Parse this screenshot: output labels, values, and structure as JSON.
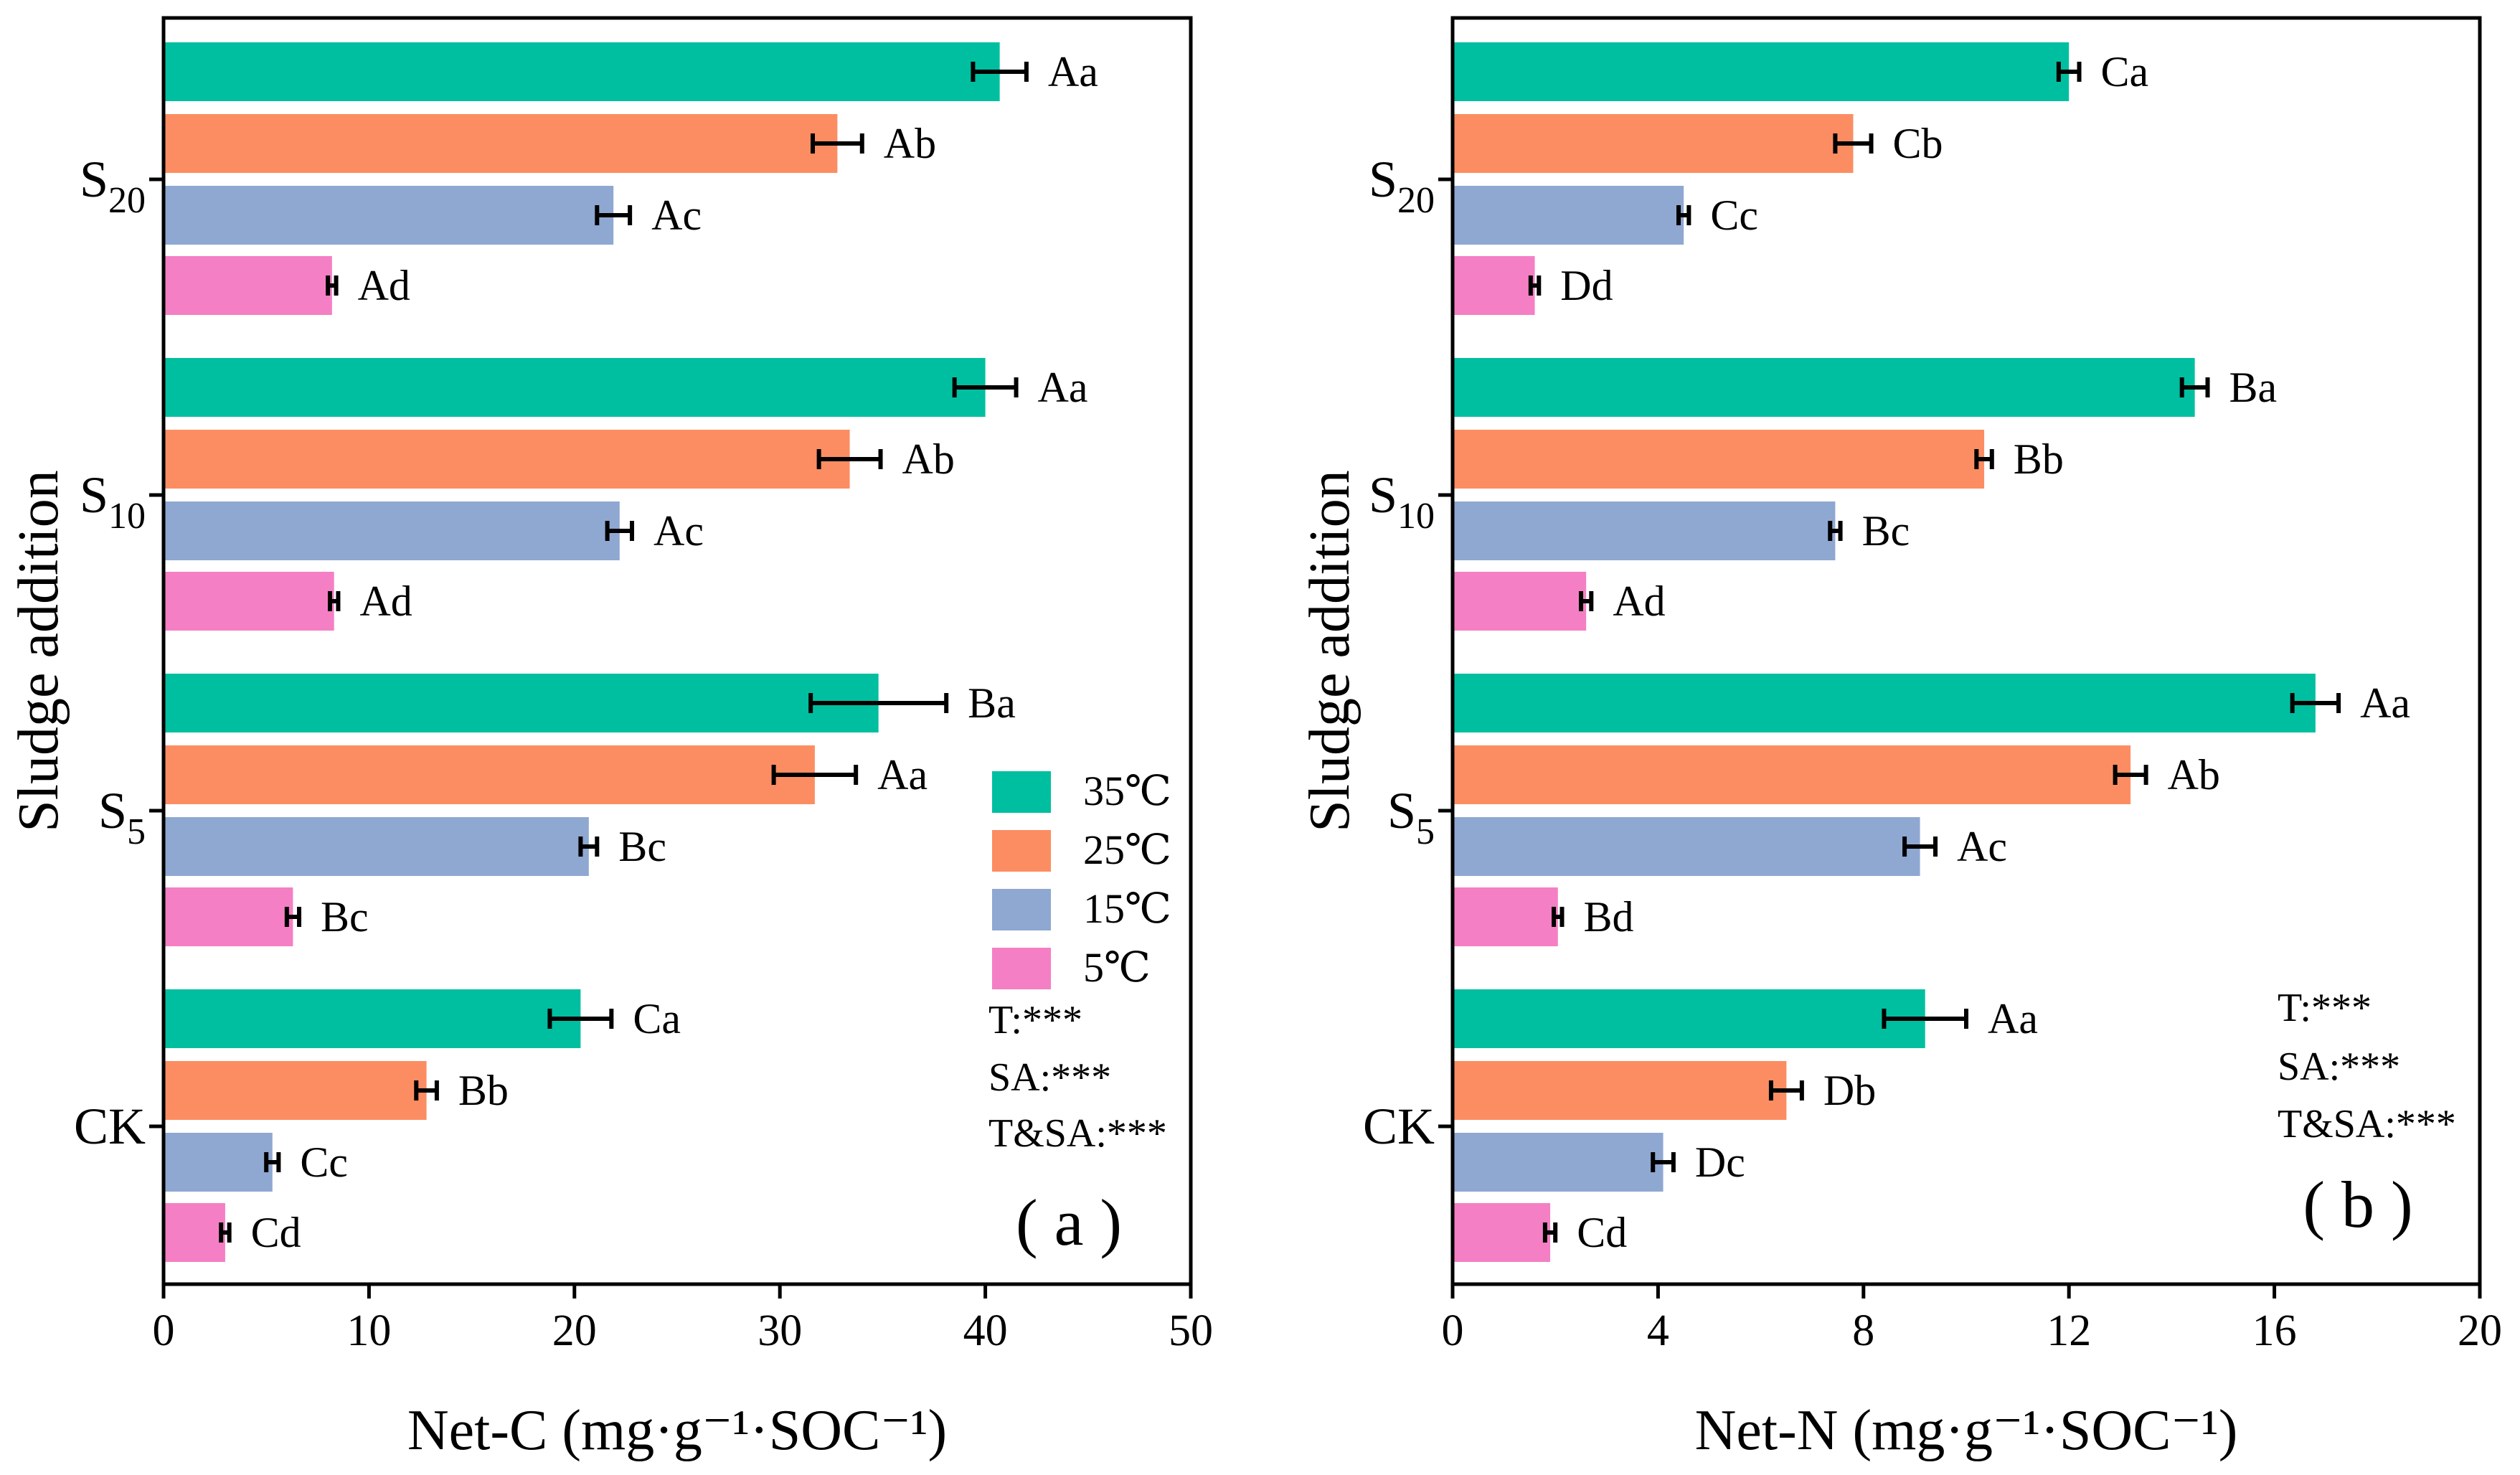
{
  "legend": [
    {
      "label": "35℃",
      "color": "#00BFA0"
    },
    {
      "label": "25℃",
      "color": "#FC8D62"
    },
    {
      "label": "15℃",
      "color": "#8FA8D2"
    },
    {
      "label": "5℃",
      "color": "#F57FC4"
    }
  ],
  "chart_data": [
    {
      "type": "bar",
      "orientation": "horizontal",
      "panel_label": "( a )",
      "xlabel": "Net-C (mg·g⁻¹·SOC⁻¹)",
      "ylabel": "Sludge addition",
      "categories": [
        {
          "base": "S",
          "sub": "20"
        },
        {
          "base": "S",
          "sub": "10"
        },
        {
          "base": "S",
          "sub": "5"
        },
        {
          "base": "CK",
          "sub": ""
        }
      ],
      "xlim": [
        0,
        50
      ],
      "xticks": [
        0,
        10,
        20,
        30,
        40,
        50
      ],
      "series": [
        {
          "name": "35℃",
          "values": [
            40.7,
            40.0,
            34.8,
            20.3
          ],
          "errors": [
            1.3,
            1.5,
            3.3,
            1.5
          ],
          "labels": [
            "Aa",
            "Aa",
            "Ba",
            "Ca"
          ]
        },
        {
          "name": "25℃",
          "values": [
            32.8,
            33.4,
            31.7,
            12.8
          ],
          "errors": [
            1.2,
            1.5,
            2.0,
            0.5
          ],
          "labels": [
            "Ab",
            "Ab",
            "Aa",
            "Bb"
          ]
        },
        {
          "name": "15℃",
          "values": [
            21.9,
            22.2,
            20.7,
            5.3
          ],
          "errors": [
            0.8,
            0.6,
            0.4,
            0.3
          ],
          "labels": [
            "Ac",
            "Ac",
            "Bc",
            "Cc"
          ]
        },
        {
          "name": "5℃",
          "values": [
            8.2,
            8.3,
            6.3,
            3.0
          ],
          "errors": [
            0.2,
            0.2,
            0.3,
            0.2
          ],
          "labels": [
            "Ad",
            "Ad",
            "Bc",
            "Cd"
          ]
        }
      ],
      "stats": [
        "T:***",
        "SA:***",
        "T&SA:***"
      ]
    },
    {
      "type": "bar",
      "orientation": "horizontal",
      "panel_label": "( b )",
      "xlabel": "Net-N (mg·g⁻¹·SOC⁻¹)",
      "ylabel": "Sludge addition",
      "categories": [
        {
          "base": "S",
          "sub": "20"
        },
        {
          "base": "S",
          "sub": "10"
        },
        {
          "base": "S",
          "sub": "5"
        },
        {
          "base": "CK",
          "sub": ""
        }
      ],
      "xlim": [
        0,
        20
      ],
      "xticks": [
        0,
        4,
        8,
        12,
        16,
        20
      ],
      "series": [
        {
          "name": "35℃",
          "values": [
            12.0,
            14.45,
            16.8,
            9.2
          ],
          "errors": [
            0.2,
            0.25,
            0.45,
            0.8
          ],
          "labels": [
            "Ca",
            "Ba",
            "Aa",
            "Aa"
          ]
        },
        {
          "name": "25℃",
          "values": [
            7.8,
            10.35,
            13.2,
            6.5
          ],
          "errors": [
            0.35,
            0.15,
            0.3,
            0.3
          ],
          "labels": [
            "Cb",
            "Bb",
            "Ab",
            "Db"
          ]
        },
        {
          "name": "15℃",
          "values": [
            4.5,
            7.45,
            9.1,
            4.1
          ],
          "errors": [
            0.1,
            0.1,
            0.3,
            0.2
          ],
          "labels": [
            "Cc",
            "Bc",
            "Ac",
            "Dc"
          ]
        },
        {
          "name": "5℃",
          "values": [
            1.6,
            2.6,
            2.05,
            1.9
          ],
          "errors": [
            0.08,
            0.1,
            0.08,
            0.1
          ],
          "labels": [
            "Dd",
            "Ad",
            "Bd",
            "Cd"
          ]
        }
      ],
      "stats": [
        "T:***",
        "SA:***",
        "T&SA:***"
      ]
    }
  ]
}
